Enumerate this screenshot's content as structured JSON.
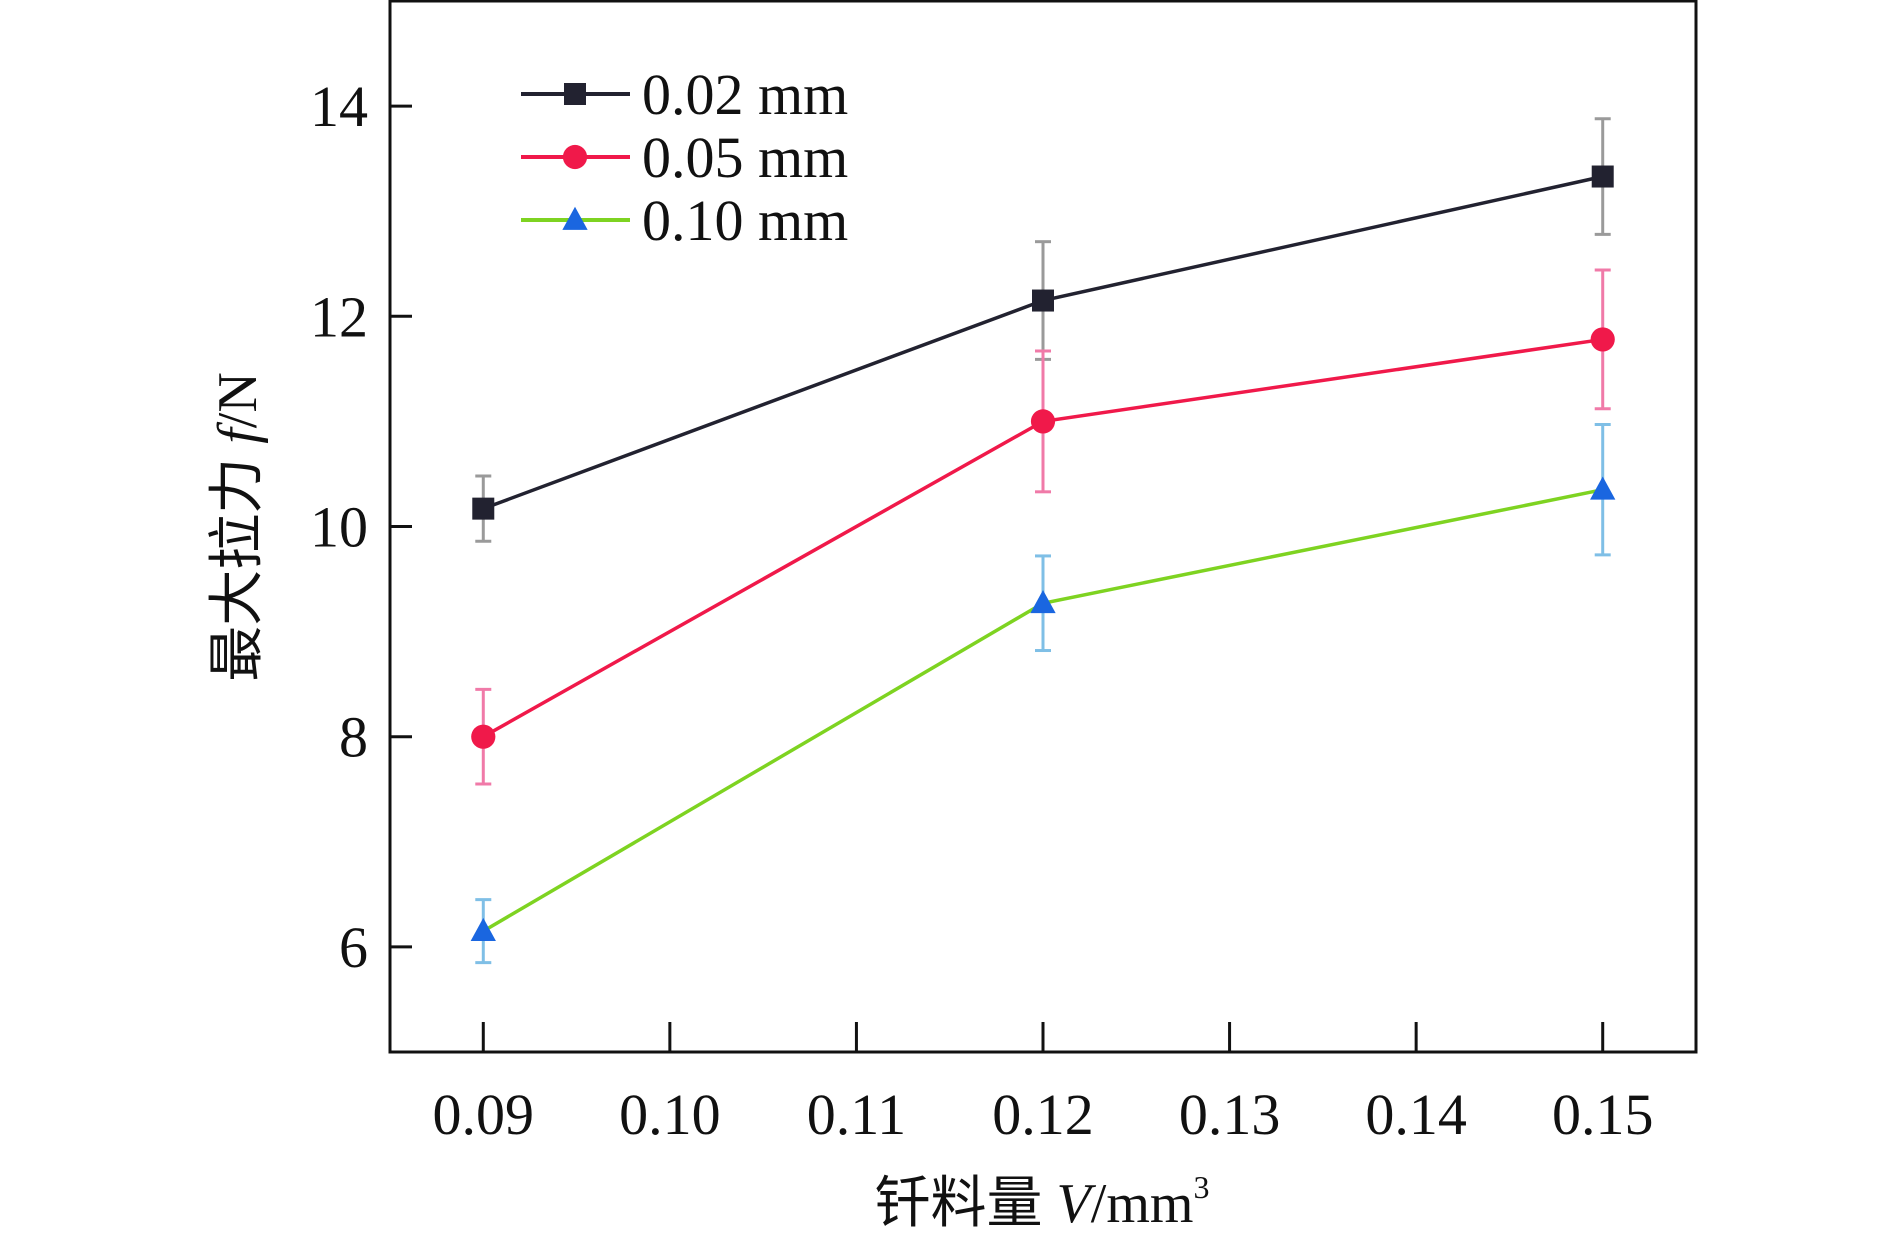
{
  "chart_data": {
    "type": "line",
    "title": "",
    "xlabel": "钎料量 V/mm³",
    "xlabel_parts": {
      "prefix": "钎料量 ",
      "var": "V",
      "unit": "/mm",
      "sup": "3"
    },
    "ylabel": "最大拉力 f/N",
    "ylabel_parts": {
      "prefix": "最大拉力 ",
      "var": "f",
      "unit": "/N"
    },
    "xlim": [
      0.085,
      0.155
    ],
    "ylim": [
      5,
      15
    ],
    "xticks": [
      0.09,
      0.1,
      0.11,
      0.12,
      0.13,
      0.14,
      0.15
    ],
    "xtick_labels": [
      "0.09",
      "0.10",
      "0.11",
      "0.12",
      "0.13",
      "0.14",
      "0.15"
    ],
    "yticks": [
      6,
      8,
      10,
      12,
      14
    ],
    "ytick_labels": [
      "6",
      "8",
      "10",
      "12",
      "14"
    ],
    "grid": false,
    "legend_position": "top-left",
    "x": [
      0.09,
      0.12,
      0.15
    ],
    "series": [
      {
        "name": "0.02 mm",
        "marker": "square",
        "color": "#222230",
        "errcolor": "#9a9a9a",
        "values": [
          10.17,
          12.15,
          13.33
        ],
        "errors": [
          0.31,
          0.56,
          0.55
        ]
      },
      {
        "name": "0.05 mm",
        "marker": "circle",
        "color": "#f0194a",
        "errcolor": "#f07aa8",
        "values": [
          8.0,
          11.0,
          11.78
        ],
        "errors": [
          0.45,
          0.67,
          0.66
        ]
      },
      {
        "name": "0.10 mm",
        "marker": "triangle",
        "color": "#1a66e0",
        "linecolor": "#7ed321",
        "errcolor": "#7fbfe6",
        "values": [
          6.15,
          9.27,
          10.35
        ],
        "errors": [
          0.3,
          0.45,
          0.62
        ]
      }
    ]
  }
}
